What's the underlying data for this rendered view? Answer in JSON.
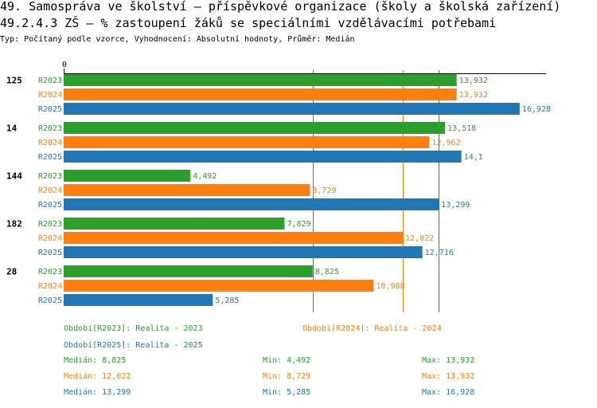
{
  "chart_data": {
    "type": "bar",
    "orientation": "horizontal",
    "title": "49. Samospráva ve školství – příspěvkové organizace (školy a školská zařízení)",
    "subtitle": "49.2.4.3 ZŠ – % zastoupení žáků se speciálními vzdělávacími potřebami",
    "caption": "Typ: Počítaný podle vzorce, Vyhodnocení: Absolutní hodnoty, Průměr: Medián",
    "xlabel": "",
    "ylabel": "",
    "xlim": [
      0,
      17.1
    ],
    "x_ticks": [
      {
        "value": 0,
        "label": "0"
      }
    ],
    "grid": false,
    "legend_position": "bottom",
    "categories": [
      "125",
      "14",
      "144",
      "182",
      "28"
    ],
    "series": [
      {
        "name": "R2023",
        "color": "#2ca02c",
        "legend": "Období[R2023]: Realita - 2023",
        "values": [
          13.932,
          13.518,
          4.492,
          7.829,
          8.825
        ],
        "labels": [
          "13,932",
          "13,518",
          "4,492",
          "7,829",
          "8,825"
        ],
        "median": 8.825,
        "stats": {
          "median": "Medián: 8,825",
          "min": "Min: 4,492",
          "max": "Max: 13,932"
        }
      },
      {
        "name": "R2024",
        "color": "#ff7f0e",
        "legend": "Období[R2024]: Realita - 2024",
        "values": [
          13.932,
          12.962,
          8.729,
          12.022,
          10.988
        ],
        "labels": [
          "13,932",
          "12,962",
          "8,729",
          "12,022",
          "10,988"
        ],
        "median": 12.022,
        "stats": {
          "median": "Medián: 12,022",
          "min": "Min: 8,729",
          "max": "Max: 13,932"
        }
      },
      {
        "name": "R2025",
        "color": "#1f77b4",
        "legend": "Období[R2025]: Realita - 2025",
        "values": [
          16.928,
          14.1,
          13.299,
          12.716,
          5.285
        ],
        "labels": [
          "16,928",
          "14,1",
          "13,299",
          "12,716",
          "5,285"
        ],
        "median": 13.299,
        "stats": {
          "median": "Medián: 13,299",
          "min": "Min: 5,285",
          "max": "Max: 16,928"
        }
      }
    ]
  }
}
